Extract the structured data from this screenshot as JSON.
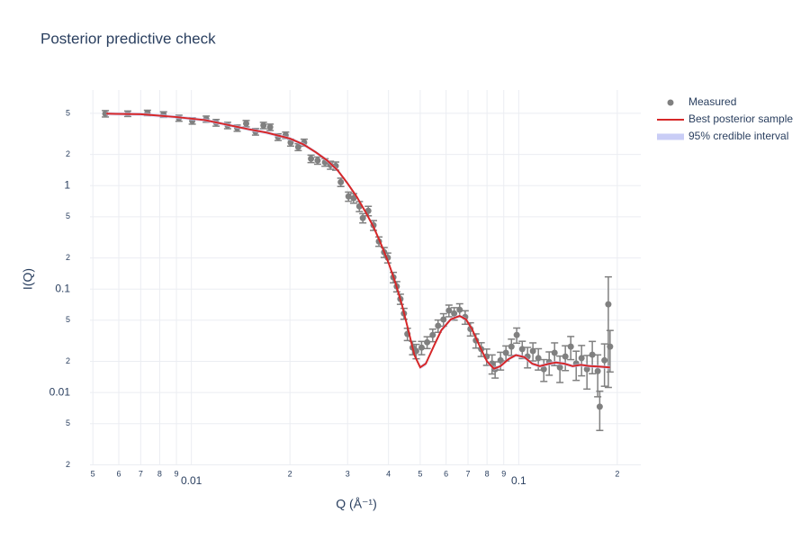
{
  "chart_data": {
    "type": "scatter",
    "title": "Posterior predictive check",
    "x_label": "Q (Å⁻¹)",
    "y_label": "I(Q)",
    "xlog": true,
    "ylog": true,
    "grid": true,
    "legend": "right",
    "xlim": [
      0.0049,
      0.236
    ],
    "ylim": [
      0.00198,
      8.4
    ],
    "xticks": [
      {
        "value": 0.005,
        "label": "5"
      },
      {
        "value": 0.006,
        "label": "6"
      },
      {
        "value": 0.007,
        "label": "7"
      },
      {
        "value": 0.008,
        "label": "8"
      },
      {
        "value": 0.009,
        "label": "9"
      },
      0.01,
      {
        "value": 0.02,
        "label": "2"
      },
      {
        "value": 0.03,
        "label": "3"
      },
      {
        "value": 0.04,
        "label": "4"
      },
      {
        "value": 0.05,
        "label": "5"
      },
      {
        "value": 0.06,
        "label": "6"
      },
      {
        "value": 0.07,
        "label": "7"
      },
      {
        "value": 0.08,
        "label": "8"
      },
      {
        "value": 0.09,
        "label": "9"
      },
      0.1,
      {
        "value": 0.2,
        "label": "2"
      }
    ],
    "yticks": [
      {
        "value": 0.002,
        "label": "2"
      },
      {
        "value": 0.005,
        "label": "5"
      },
      0.01,
      {
        "value": 0.02,
        "label": "2"
      },
      {
        "value": 0.05,
        "label": "5"
      },
      0.1,
      {
        "value": 0.2,
        "label": "2"
      },
      {
        "value": 0.5,
        "label": "5"
      },
      1,
      {
        "value": 2,
        "label": "2"
      },
      {
        "value": 5,
        "label": "5"
      }
    ],
    "series": [
      {
        "name": "Measured",
        "color": "#808080",
        "x": [
          0.00546,
          0.00639,
          0.00734,
          0.00822,
          0.00916,
          0.01006,
          0.0111,
          0.0119,
          0.0129,
          0.0138,
          0.0147,
          0.0157,
          0.0166,
          0.0174,
          0.0184,
          0.0194,
          0.0201,
          0.0212,
          0.0221,
          0.0232,
          0.0243,
          0.0256,
          0.0266,
          0.0276,
          0.0286,
          0.0302,
          0.0313,
          0.0326,
          0.0334,
          0.0347,
          0.036,
          0.0374,
          0.0388,
          0.0398,
          0.0414,
          0.0424,
          0.0435,
          0.0446,
          0.0457,
          0.0474,
          0.0486,
          0.0505,
          0.0525,
          0.0546,
          0.0567,
          0.0589,
          0.0612,
          0.0635,
          0.066,
          0.0686,
          0.0712,
          0.074,
          0.0768,
          0.0798,
          0.0829,
          0.0847,
          0.088,
          0.0914,
          0.095,
          0.0986,
          0.1025,
          0.1064,
          0.1105,
          0.1148,
          0.1193,
          0.1239,
          0.1287,
          0.1336,
          0.1388,
          0.1442,
          0.1498,
          0.1556,
          0.1616,
          0.1678,
          0.1743,
          0.1768,
          0.1828,
          0.1878,
          0.1901
        ],
        "values": [
          4.96,
          4.96,
          5.05,
          4.87,
          4.49,
          4.23,
          4.4,
          4.06,
          3.82,
          3.6,
          3.98,
          3.32,
          3.82,
          3.67,
          2.95,
          3.07,
          2.61,
          2.36,
          2.61,
          1.82,
          1.75,
          1.68,
          1.58,
          1.55,
          1.08,
          0.786,
          0.756,
          0.631,
          0.486,
          0.571,
          0.414,
          0.289,
          0.227,
          0.201,
          0.13,
          0.106,
          0.0802,
          0.0581,
          0.0368,
          0.0272,
          0.0252,
          0.0272,
          0.0306,
          0.036,
          0.0442,
          0.0508,
          0.062,
          0.0581,
          0.0631,
          0.0537,
          0.0412,
          0.0319,
          0.0263,
          0.0223,
          0.0191,
          0.0168,
          0.0205,
          0.0242,
          0.0278,
          0.036,
          0.0263,
          0.0223,
          0.0252,
          0.0215,
          0.0168,
          0.0197,
          0.0242,
          0.0175,
          0.0223,
          0.0278,
          0.0191,
          0.0215,
          0.0168,
          0.0232,
          0.0161,
          0.0073,
          0.0205,
          0.0712,
          0.0278
        ],
        "errors": [
          0.35,
          0.3,
          0.3,
          0.3,
          0.3,
          0.3,
          0.3,
          0.3,
          0.27,
          0.25,
          0.28,
          0.24,
          0.27,
          0.26,
          0.22,
          0.22,
          0.2,
          0.18,
          0.2,
          0.15,
          0.14,
          0.14,
          0.14,
          0.14,
          0.1,
          0.08,
          0.08,
          0.07,
          0.05,
          0.06,
          0.045,
          0.03,
          0.025,
          0.022,
          0.015,
          0.012,
          0.009,
          0.007,
          0.005,
          0.004,
          0.004,
          0.004,
          0.004,
          0.005,
          0.006,
          0.007,
          0.008,
          0.008,
          0.009,
          0.008,
          0.006,
          0.005,
          0.004,
          0.004,
          0.004,
          0.003,
          0.004,
          0.004,
          0.005,
          0.006,
          0.005,
          0.005,
          0.005,
          0.005,
          0.004,
          0.005,
          0.006,
          0.005,
          0.006,
          0.007,
          0.006,
          0.007,
          0.006,
          0.008,
          0.007,
          0.003,
          0.009,
          0.06,
          0.012
        ]
      },
      {
        "name": "Best posterior sample",
        "color": "#d62728",
        "x": [
          0.0055,
          0.007,
          0.009,
          0.011,
          0.013,
          0.015,
          0.017,
          0.02,
          0.022,
          0.024,
          0.026,
          0.028,
          0.03,
          0.032,
          0.034,
          0.036,
          0.038,
          0.04,
          0.042,
          0.044,
          0.046,
          0.048,
          0.05,
          0.052,
          0.055,
          0.058,
          0.062,
          0.066,
          0.069,
          0.072,
          0.076,
          0.08,
          0.084,
          0.088,
          0.093,
          0.098,
          0.104,
          0.11,
          0.116,
          0.124,
          0.13,
          0.138,
          0.146,
          0.155,
          0.165,
          0.177,
          0.19
        ],
        "values": [
          4.96,
          4.9,
          4.6,
          4.3,
          3.85,
          3.5,
          3.25,
          2.85,
          2.5,
          2.1,
          1.75,
          1.4,
          1.05,
          0.78,
          0.56,
          0.4,
          0.27,
          0.18,
          0.115,
          0.07,
          0.04,
          0.023,
          0.0175,
          0.019,
          0.028,
          0.04,
          0.051,
          0.055,
          0.051,
          0.041,
          0.028,
          0.02,
          0.017,
          0.018,
          0.021,
          0.023,
          0.022,
          0.019,
          0.018,
          0.019,
          0.0195,
          0.019,
          0.018,
          0.0185,
          0.018,
          0.0178,
          0.0175
        ]
      },
      {
        "name": "95% credible interval",
        "color": "#c9cdf6",
        "x": [
          0.0055,
          0.007,
          0.009,
          0.011,
          0.013,
          0.015,
          0.017,
          0.02,
          0.022,
          0.024,
          0.026,
          0.028,
          0.03,
          0.032,
          0.034,
          0.036,
          0.038,
          0.04,
          0.042,
          0.044,
          0.046,
          0.048,
          0.05,
          0.052,
          0.055,
          0.058,
          0.062,
          0.066,
          0.069,
          0.072,
          0.076,
          0.08,
          0.084,
          0.088,
          0.093,
          0.098,
          0.104,
          0.11,
          0.116,
          0.124,
          0.13,
          0.138,
          0.146,
          0.155,
          0.165,
          0.177,
          0.19
        ],
        "lower": [
          4.76,
          4.7,
          4.42,
          4.13,
          3.7,
          3.36,
          3.12,
          2.74,
          2.4,
          2.02,
          1.68,
          1.34,
          1.01,
          0.75,
          0.54,
          0.38,
          0.26,
          0.173,
          0.11,
          0.067,
          0.038,
          0.022,
          0.0168,
          0.018,
          0.027,
          0.038,
          0.049,
          0.053,
          0.049,
          0.039,
          0.027,
          0.019,
          0.0163,
          0.0173,
          0.0202,
          0.0221,
          0.0211,
          0.0182,
          0.0173,
          0.0182,
          0.0187,
          0.0182,
          0.0173,
          0.0178,
          0.0173,
          0.0171,
          0.0168
        ],
        "upper": [
          5.16,
          5.1,
          4.78,
          4.47,
          4.0,
          3.64,
          3.38,
          2.96,
          2.6,
          2.18,
          1.82,
          1.46,
          1.09,
          0.81,
          0.58,
          0.42,
          0.28,
          0.187,
          0.12,
          0.073,
          0.042,
          0.024,
          0.0182,
          0.02,
          0.029,
          0.042,
          0.053,
          0.057,
          0.053,
          0.043,
          0.029,
          0.021,
          0.0177,
          0.0187,
          0.0218,
          0.0239,
          0.0229,
          0.0198,
          0.0187,
          0.0198,
          0.0203,
          0.0198,
          0.0187,
          0.0192,
          0.0187,
          0.0185,
          0.0182
        ]
      }
    ]
  }
}
